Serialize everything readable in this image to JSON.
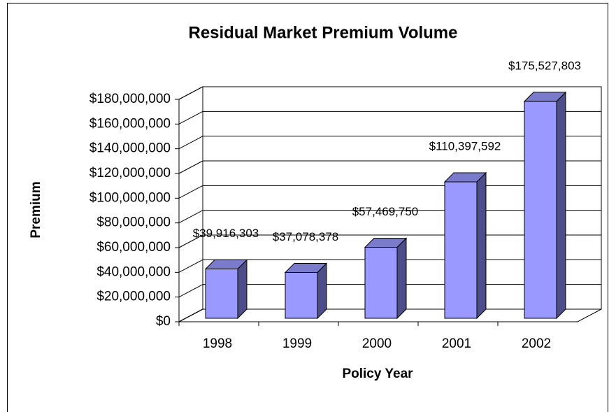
{
  "chart_data": {
    "type": "bar3d",
    "title": "Residual Market Premium Volume",
    "x_label": "Policy Year",
    "y_label": "Premium",
    "categories": [
      "1998",
      "1999",
      "2000",
      "2001",
      "2002"
    ],
    "values": [
      39916303,
      37078378,
      57469750,
      110397592,
      175527803
    ],
    "value_labels": [
      "$39,916,303",
      "$37,078,378",
      "$57,469,750",
      "$110,397,592",
      "$175,527,803"
    ],
    "color": "#9999ff",
    "side_color": "#4d4d8a",
    "top_color": "#7b7bcc",
    "ylim": [
      0,
      180000000
    ],
    "yticks": [
      {
        "value": 0,
        "label": "$0"
      },
      {
        "value": 20000000,
        "label": "$20,000,000"
      },
      {
        "value": 40000000,
        "label": "$40,000,000"
      },
      {
        "value": 60000000,
        "label": "$60,000,000"
      },
      {
        "value": 80000000,
        "label": "$80,000,000"
      },
      {
        "value": 100000000,
        "label": "$100,000,000"
      },
      {
        "value": 120000000,
        "label": "$120,000,000"
      },
      {
        "value": 140000000,
        "label": "$140,000,000"
      },
      {
        "value": 160000000,
        "label": "$160,000,000"
      },
      {
        "value": 180000000,
        "label": "$180,000,000"
      }
    ],
    "grid": true
  }
}
